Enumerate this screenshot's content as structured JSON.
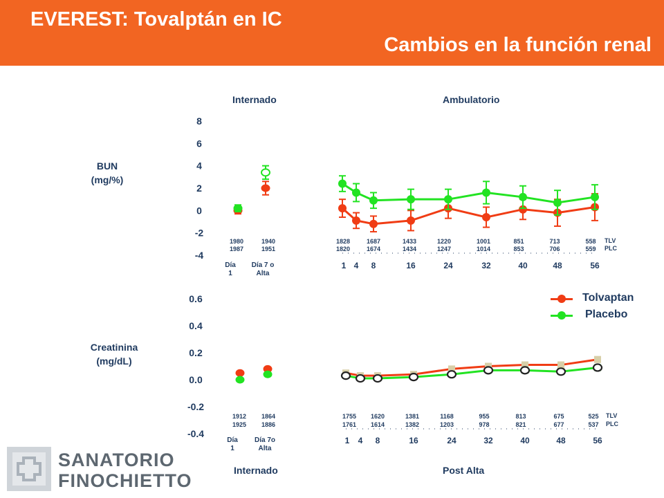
{
  "header": {
    "title": "EVEREST: Tovalptán en IC",
    "subtitle": "Cambios en la función renal",
    "color": "#f26522"
  },
  "sections": {
    "inpatient_top": "Internado",
    "outpatient_top": "Ambulatorio",
    "inpatient_bottom": "Internado",
    "outpatient_bottom": "Post Alta"
  },
  "legend": {
    "items": [
      {
        "label": "Tolvaptan",
        "color": "#f03c14"
      },
      {
        "label": "Placebo",
        "color": "#22e322"
      }
    ]
  },
  "logo": {
    "line1": "SANATORIO",
    "line2": "FINOCHIETTO"
  },
  "chart_data": [
    {
      "type": "line",
      "ylabel_lines": [
        "BUN",
        "(mg/%)"
      ],
      "yticks": [
        "8",
        "6",
        "4",
        "2",
        "0",
        "-2",
        "-4"
      ],
      "ylim": [
        -4,
        8
      ],
      "inpatient": {
        "categories": [
          [
            "Día",
            "1"
          ],
          [
            "Día 7 o",
            "Alta"
          ]
        ],
        "series": [
          {
            "name": "Tolvaptan",
            "values": [
              0.0,
              2.0
            ],
            "err": [
              0.3,
              0.6
            ]
          },
          {
            "name": "Placebo",
            "values": [
              0.2,
              3.4
            ],
            "err": [
              0.3,
              0.6
            ]
          }
        ],
        "n_rows": [
          [
            "1980",
            "1940"
          ],
          [
            "1987",
            "1951"
          ]
        ]
      },
      "outpatient": {
        "x": [
          "1",
          "4",
          "8",
          "16",
          "24",
          "32",
          "40",
          "48",
          "56"
        ],
        "series": [
          {
            "name": "Tolvaptan",
            "values": [
              0.2,
              -0.9,
              -1.2,
              -0.9,
              0.2,
              -0.6,
              0.1,
              -0.2,
              0.3
            ],
            "err": [
              0.8,
              0.7,
              0.7,
              0.9,
              0.9,
              0.9,
              0.9,
              1.2,
              1.2
            ]
          },
          {
            "name": "Placebo",
            "values": [
              2.4,
              1.6,
              0.9,
              1.0,
              1.0,
              1.6,
              1.2,
              0.7,
              1.2
            ],
            "err": [
              0.7,
              0.8,
              0.7,
              0.9,
              0.9,
              1.0,
              1.0,
              1.1,
              1.1
            ]
          }
        ],
        "n_rows": [
          [
            "1828",
            "1687",
            "1433",
            "1220",
            "1001",
            "851",
            "713",
            "558"
          ],
          [
            "1820",
            "1674",
            "1434",
            "1247",
            "1014",
            "853",
            "706",
            "559"
          ]
        ],
        "row_labels": [
          "TLV",
          "PLC"
        ]
      }
    },
    {
      "type": "line",
      "ylabel_lines": [
        "Creatinina",
        "(mg/dL)"
      ],
      "yticks": [
        "0.6",
        "0.4",
        "0.2",
        "0.0",
        "-0.2",
        "-0.4"
      ],
      "ylim": [
        -0.4,
        0.6
      ],
      "inpatient": {
        "categories": [
          [
            "Día",
            "1"
          ],
          [
            "Día 7o",
            "Alta"
          ]
        ],
        "series": [
          {
            "name": "Tolvaptan",
            "values": [
              0.05,
              0.08
            ]
          },
          {
            "name": "Placebo",
            "values": [
              0.0,
              0.04
            ]
          }
        ],
        "n_rows": [
          [
            "1912",
            "1864"
          ],
          [
            "1925",
            "1886"
          ]
        ]
      },
      "outpatient": {
        "x": [
          "1",
          "4",
          "8",
          "16",
          "24",
          "32",
          "40",
          "48",
          "56"
        ],
        "series": [
          {
            "name": "Tolvaptan",
            "values": [
              0.05,
              0.03,
              0.03,
              0.04,
              0.08,
              0.1,
              0.11,
              0.11,
              0.15
            ],
            "err": [
              0.01,
              0.01,
              0.01,
              0.01,
              0.01,
              0.01,
              0.02,
              0.02,
              0.02
            ]
          },
          {
            "name": "Placebo",
            "values": [
              0.03,
              0.01,
              0.01,
              0.02,
              0.04,
              0.07,
              0.07,
              0.06,
              0.09
            ],
            "err": [
              0.01,
              0.01,
              0.01,
              0.01,
              0.01,
              0.01,
              0.02,
              0.02,
              0.02
            ]
          }
        ],
        "n_rows": [
          [
            "1755",
            "1620",
            "1381",
            "1168",
            "955",
            "813",
            "675",
            "525"
          ],
          [
            "1761",
            "1614",
            "1382",
            "1203",
            "978",
            "821",
            "677",
            "537"
          ]
        ],
        "row_labels": [
          "TLV",
          "PLC"
        ]
      }
    }
  ]
}
